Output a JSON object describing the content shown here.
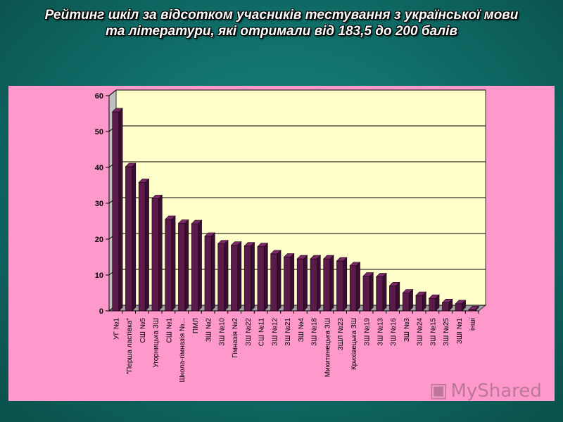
{
  "title": "Рейтинг шкіл за відсотком учасників тестування з української мови та літератури, які отримали від 183,5 до 200 балів",
  "watermark": "MyShared",
  "chart_data": {
    "type": "bar",
    "title": "",
    "xlabel": "",
    "ylabel": "",
    "ylim": [
      0,
      60
    ],
    "yticks": [
      0,
      10,
      20,
      30,
      40,
      50,
      60
    ],
    "grid": true,
    "legend": "none",
    "colors": {
      "plot_bg": "#ffffcc",
      "bar": "#5a1a4a",
      "bar_side": "#3a0e30",
      "bar_top": "#7a2a66",
      "wall_side": "#c0c0c0",
      "floor": "#a0a0a0"
    },
    "categories": [
      "УГ №1",
      "\"Перша ластівка\"",
      "СШ №5",
      "Угорницька ЗШ",
      "СШ №1",
      "Школа-гімназія №...",
      "ПМЛ",
      "ЗШ №2",
      "ЗШ №10",
      "Гімназія №2",
      "ЗШ №22",
      "СШ №11",
      "ЗШ №12",
      "ЗШ №21",
      "ЗШ №4",
      "ЗШ №18",
      "Микитинецька ЗШ",
      "ЗШЛ №23",
      "Крихівецька ЗШ",
      "ЗШ №19",
      "ЗШ №13",
      "ЗШ №16",
      "ЗШ №3",
      "ЗШ №24",
      "ЗШ №15",
      "ЗШ №25",
      "ЗШІ №1",
      "інші"
    ],
    "values": [
      55.5,
      40.2,
      35.8,
      31.3,
      25.5,
      24.4,
      24.3,
      20.8,
      18.7,
      18.3,
      18.1,
      17.9,
      15.9,
      15.0,
      14.5,
      14.5,
      14.5,
      13.9,
      12.6,
      9.7,
      9.5,
      7.0,
      5.0,
      4.3,
      3.5,
      2.3,
      2.0,
      0.3
    ]
  }
}
